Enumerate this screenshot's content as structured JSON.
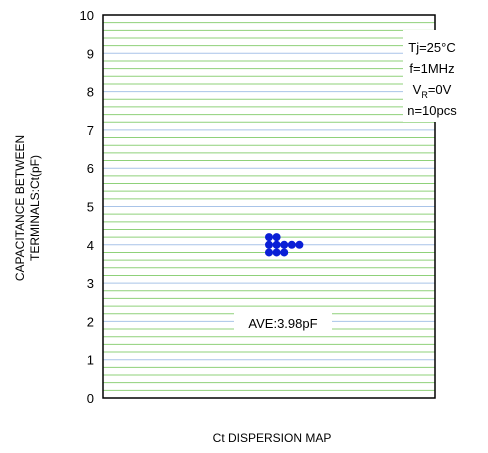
{
  "chart_data": {
    "type": "scatter",
    "xlabel": "Ct DISPERSION MAP",
    "ylabel_lines": [
      "CAPACITANCE BETWEEN",
      "TERMINALS:Ct(pF)"
    ],
    "ylim": [
      0,
      10
    ],
    "y_ticks": [
      "0",
      "1",
      "2",
      "3",
      "4",
      "5",
      "6",
      "7",
      "8",
      "9",
      "10"
    ],
    "major_grid_color": "#a9c4e8",
    "minor_grid_color": "#8fd17a",
    "minor_divisions": 5,
    "marker_color": "#0a1fd6",
    "points": [
      {
        "col": 0,
        "y": 4.2
      },
      {
        "col": 1,
        "y": 4.2
      },
      {
        "col": 0,
        "y": 4.0
      },
      {
        "col": 1,
        "y": 4.0
      },
      {
        "col": 2,
        "y": 4.0
      },
      {
        "col": 3,
        "y": 4.0
      },
      {
        "col": 4,
        "y": 4.0
      },
      {
        "col": 0,
        "y": 3.8
      },
      {
        "col": 1,
        "y": 3.8
      },
      {
        "col": 2,
        "y": 3.8
      }
    ],
    "conditions": {
      "tj": "Tj=25°C",
      "freq": "f=1MHz",
      "vr_main": "V",
      "vr_sub": "R",
      "vr_value": "=0V",
      "count": "n=10pcs"
    },
    "average_label": "AVE:3.98pF"
  }
}
